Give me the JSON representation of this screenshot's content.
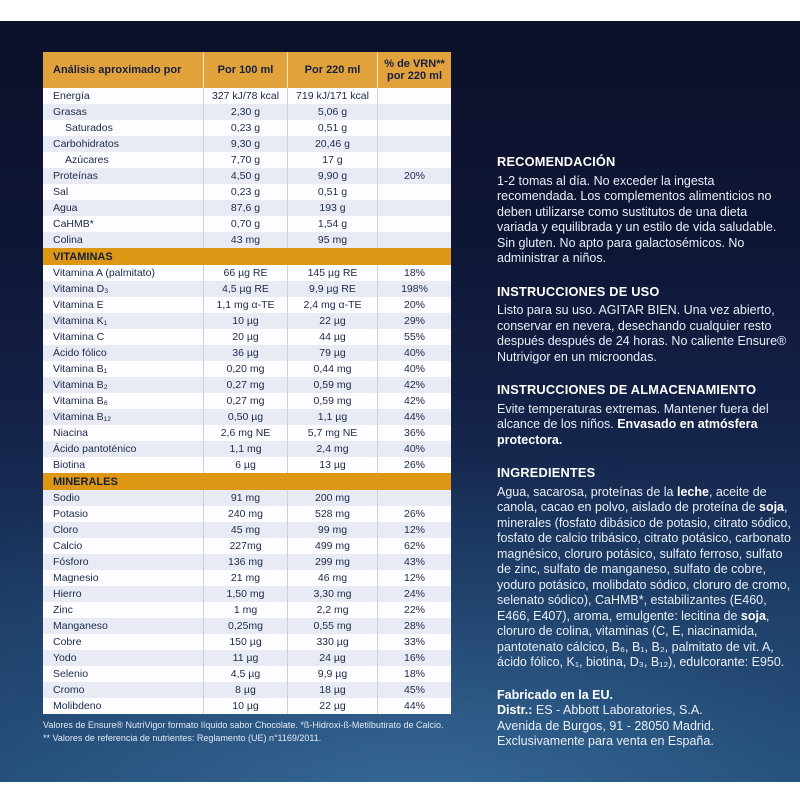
{
  "colors": {
    "header_orange": "#E2A23B",
    "section_band_orange": "#DE9714",
    "table_text_navy": "#1B2A4A",
    "shaded_row": "#E8EBF4",
    "background_navy_top": "#0C102B",
    "background_blue_bottom": "#234C77",
    "panel_text": "#E9EFF8"
  },
  "table": {
    "headers": [
      "Análisis aproximado por",
      "Por 100 ml",
      "Por 220 ml",
      "% de VRN** por 220 ml"
    ],
    "sections": [
      {
        "title": null,
        "start_shaded": false,
        "rows": [
          {
            "label": "Energía",
            "per100": "327 kJ/78 kcal",
            "per220": "719 kJ/171 kcal",
            "vrn": "",
            "indent": false
          },
          {
            "label": "Grasas",
            "per100": "2,30 g",
            "per220": "5,06 g",
            "vrn": "",
            "indent": false
          },
          {
            "label": "Saturados",
            "per100": "0,23 g",
            "per220": "0,51 g",
            "vrn": "",
            "indent": true
          },
          {
            "label": "Carbohidratos",
            "per100": "9,30 g",
            "per220": "20,46 g",
            "vrn": "",
            "indent": false
          },
          {
            "label": "Azúcares",
            "per100": "7,70 g",
            "per220": "17 g",
            "vrn": "",
            "indent": true
          },
          {
            "label": "Proteínas",
            "per100": "4,50 g",
            "per220": "9,90 g",
            "vrn": "20%",
            "indent": false
          },
          {
            "label": "Sal",
            "per100": "0,23 g",
            "per220": "0,51 g",
            "vrn": "",
            "indent": false
          },
          {
            "label": "Agua",
            "per100": "87,6 g",
            "per220": "193 g",
            "vrn": "",
            "indent": false
          },
          {
            "label": "CaHMB*",
            "per100": "0,70 g",
            "per220": "1,54 g",
            "vrn": "",
            "indent": false
          },
          {
            "label": "Colina",
            "per100": "43 mg",
            "per220": "95 mg",
            "vrn": "",
            "indent": false
          }
        ]
      },
      {
        "title": "VITAMINAS",
        "start_shaded": false,
        "rows": [
          {
            "label": "Vitamina A (palmitato)",
            "per100": "66 µg RE",
            "per220": "145 µg RE",
            "vrn": "18%",
            "indent": false
          },
          {
            "label": "Vitamina D₃",
            "per100": "4,5 µg RE",
            "per220": "9,9 µg RE",
            "vrn": "198%",
            "indent": false
          },
          {
            "label": "Vitamina E",
            "per100": "1,1 mg α-TE",
            "per220": "2,4 mg α-TE",
            "vrn": "20%",
            "indent": false
          },
          {
            "label": "Vitamina K₁",
            "per100": "10 µg",
            "per220": "22 µg",
            "vrn": "29%",
            "indent": false
          },
          {
            "label": "Vitamina C",
            "per100": "20 µg",
            "per220": "44 µg",
            "vrn": "55%",
            "indent": false
          },
          {
            "label": "Ácido fólico",
            "per100": "36 µg",
            "per220": "79 µg",
            "vrn": "40%",
            "indent": false
          },
          {
            "label": "Vitamina B₁",
            "per100": "0,20 mg",
            "per220": "0,44 mg",
            "vrn": "40%",
            "indent": false
          },
          {
            "label": "Vitamina B₂",
            "per100": "0,27 mg",
            "per220": "0,59 mg",
            "vrn": "42%",
            "indent": false
          },
          {
            "label": "Vitamina B₆",
            "per100": "0,27 mg",
            "per220": "0,59 mg",
            "vrn": "42%",
            "indent": false
          },
          {
            "label": "Vitamina B₁₂",
            "per100": "0,50 µg",
            "per220": "1,1 µg",
            "vrn": "44%",
            "indent": false
          },
          {
            "label": "Niacina",
            "per100": "2,6 mg NE",
            "per220": "5,7 mg NE",
            "vrn": "36%",
            "indent": false
          },
          {
            "label": "Ácido pantoténico",
            "per100": "1,1 mg",
            "per220": "2,4 mg",
            "vrn": "40%",
            "indent": false
          },
          {
            "label": "Biotina",
            "per100": "6 µg",
            "per220": "13 µg",
            "vrn": "26%",
            "indent": false
          }
        ]
      },
      {
        "title": "MINERALES",
        "start_shaded": true,
        "rows": [
          {
            "label": "Sodio",
            "per100": "91 mg",
            "per220": "200 mg",
            "vrn": "",
            "indent": false
          },
          {
            "label": "Potasio",
            "per100": "240 mg",
            "per220": "528 mg",
            "vrn": "26%",
            "indent": false
          },
          {
            "label": "Cloro",
            "per100": "45 mg",
            "per220": "99 mg",
            "vrn": "12%",
            "indent": false
          },
          {
            "label": "Calcio",
            "per100": "227mg",
            "per220": "499 mg",
            "vrn": "62%",
            "indent": false
          },
          {
            "label": "Fósforo",
            "per100": "136 mg",
            "per220": "299 mg",
            "vrn": "43%",
            "indent": false
          },
          {
            "label": "Magnesio",
            "per100": "21 mg",
            "per220": "46 mg",
            "vrn": "12%",
            "indent": false
          },
          {
            "label": "Hierro",
            "per100": "1,50 mg",
            "per220": "3,30 mg",
            "vrn": "24%",
            "indent": false
          },
          {
            "label": "Zinc",
            "per100": "1 mg",
            "per220": "2,2 mg",
            "vrn": "22%",
            "indent": false
          },
          {
            "label": "Manganeso",
            "per100": "0,25mg",
            "per220": "0,55 mg",
            "vrn": "28%",
            "indent": false
          },
          {
            "label": "Cobre",
            "per100": "150 µg",
            "per220": "330 µg",
            "vrn": "33%",
            "indent": false
          },
          {
            "label": "Yodo",
            "per100": "11 µg",
            "per220": "24 µg",
            "vrn": "16%",
            "indent": false
          },
          {
            "label": "Selenio",
            "per100": "4,5 µg",
            "per220": "9,9 µg",
            "vrn": "18%",
            "indent": false
          },
          {
            "label": "Cromo",
            "per100": "8 µg",
            "per220": "18 µg",
            "vrn": "45%",
            "indent": false
          },
          {
            "label": "Molibdeno",
            "per100": "10 µg",
            "per220": "22 µg",
            "vrn": "44%",
            "indent": false
          }
        ]
      }
    ],
    "footnotes": [
      "Valores de Ensure® NutriVigor formato líquido sabor Chocolate. *ß-Hidroxi-ß-Metilbutirato de Calcio.",
      "** Valores de referencia de nutrientes: Reglamento (UE) n°1169/2011."
    ]
  },
  "panel": {
    "sections": [
      {
        "heading": "RECOMENDACIÓN",
        "segments": [
          {
            "t": "1-2 tomas al día. No exceder la ingesta recomendada. Los complementos alimenticios no deben utilizarse como sustitutos de una dieta variada y equilibrada y un estilo de vida saludable. Sin gluten. No apto para galactosémicos. No administrar a niños.",
            "b": false
          }
        ]
      },
      {
        "heading": "INSTRUCCIONES DE USO",
        "segments": [
          {
            "t": "Listo para su uso. AGITAR BIEN. Una vez abierto, conservar en nevera, desechando cualquier resto después después de 24 horas. No caliente Ensure® Nutrivigor en un microondas.",
            "b": false
          }
        ]
      },
      {
        "heading": "INSTRUCCIONES DE ALMACENAMIENTO",
        "segments": [
          {
            "t": "Evite temperaturas extremas. Mantener fuera del alcance de los niños. ",
            "b": false
          },
          {
            "t": "Envasado en atmósfera protectora.",
            "b": true
          }
        ]
      },
      {
        "heading": "INGREDIENTES",
        "segments": [
          {
            "t": "Agua, sacarosa, proteínas de la ",
            "b": false
          },
          {
            "t": "leche",
            "b": true
          },
          {
            "t": ", aceite de canola, cacao en polvo, aislado de proteína de ",
            "b": false
          },
          {
            "t": "soja",
            "b": true
          },
          {
            "t": ", minerales (fosfato dibásico de potasio, citrato sódico, fosfato de calcio tribásico, citrato potásico, carbonato magnésico, cloruro potásico, sulfato ferroso, sulfato de zinc, sulfato de manganeso, sulfato de cobre, yoduro potásico, molibdato sódico, cloruro de cromo, selenato sódico), CaHMB*, estabilizantes (E460, E466, E407), aroma, emulgente: lecitina de ",
            "b": false
          },
          {
            "t": "soja",
            "b": true
          },
          {
            "t": ", cloruro de colina, vitaminas (C, E, niacinamida, pantotenato cálcico, B₆, B₁, B₂, palmitato de vit. A, ácido fólico, K₁, biotina, D₃, B₁₂), edulcorante: E950.",
            "b": false
          }
        ]
      }
    ],
    "manufacturer": {
      "lines": [
        [
          {
            "t": "Fabricado en la EU.",
            "b": true
          }
        ],
        [
          {
            "t": "Distr.:",
            "b": true
          },
          {
            "t": " ES - Abbott Laboratories, S.A.",
            "b": false
          }
        ],
        [
          {
            "t": "Avenida de Burgos, 91 - 28050 Madrid.",
            "b": false
          }
        ],
        [
          {
            "t": "Exclusivamente para venta en España.",
            "b": false
          }
        ]
      ]
    }
  }
}
